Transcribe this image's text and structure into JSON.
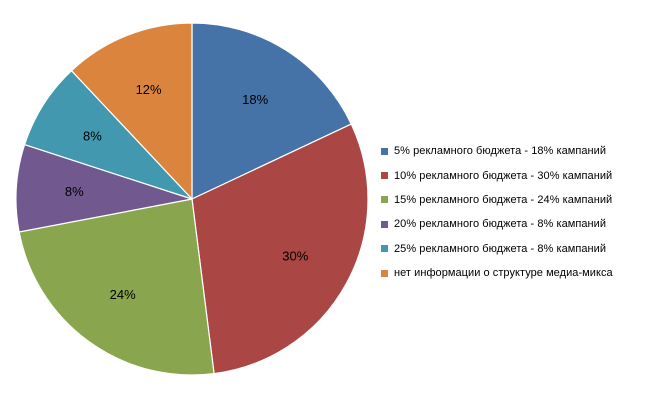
{
  "chart_data": {
    "type": "pie",
    "title": "",
    "start_angle_deg": 0,
    "direction": "clockwise",
    "slices": [
      {
        "label": "5% рекламного бюджета  - 18% кампаний",
        "value": 18,
        "display": "18%",
        "color": "#4572A7"
      },
      {
        "label": "10% рекламного бюджета  - 30% кампаний",
        "value": 30,
        "display": "30%",
        "color": "#AA4643"
      },
      {
        "label": "15% рекламного бюджета  - 24% кампаний",
        "value": 24,
        "display": "24%",
        "color": "#89A54E"
      },
      {
        "label": "20% рекламного бюджета  - 8% кампаний",
        "value": 8,
        "display": "8%",
        "color": "#71588F"
      },
      {
        "label": "25% рекламного бюджета  - 8% кампаний",
        "value": 8,
        "display": "8%",
        "color": "#4198AF"
      },
      {
        "label": "нет информации  о структуре медиа-микса",
        "value": 12,
        "display": "12%",
        "color": "#DB843D"
      }
    ],
    "legend_position": "right"
  }
}
